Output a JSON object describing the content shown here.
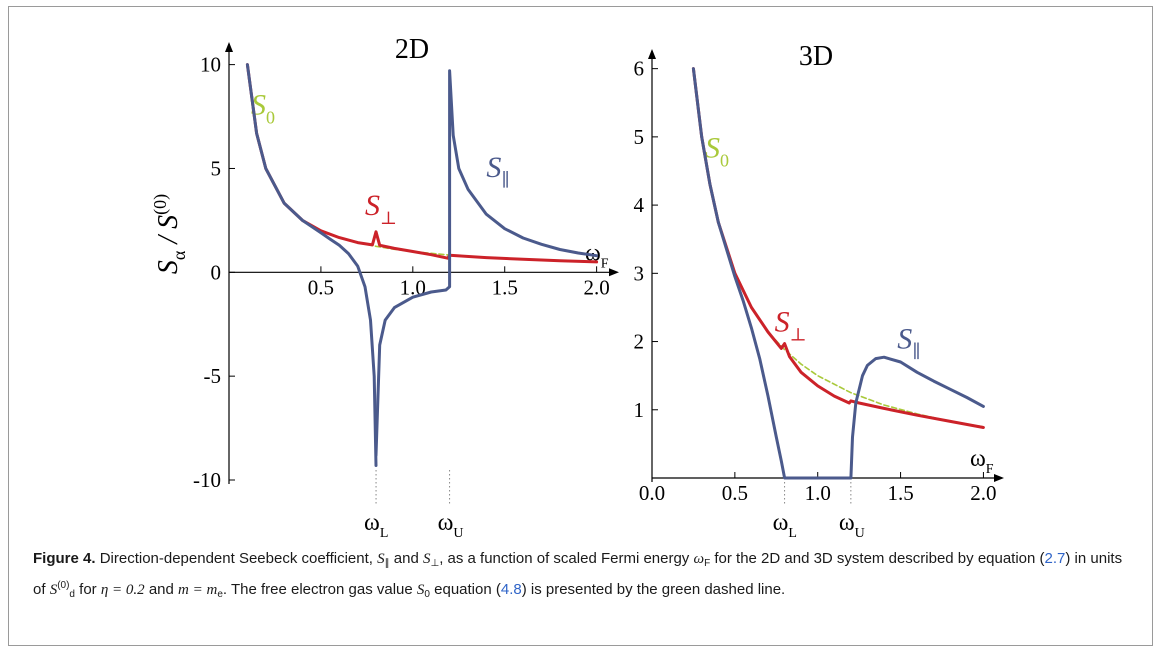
{
  "colors": {
    "S_perp": "#cc2229",
    "S_par": "#4b5a8c",
    "S0": "#a9c93a",
    "axis": "#000000",
    "marker": "#888888"
  },
  "chart_data": [
    {
      "type": "line",
      "title": "2D",
      "xlabel": "ω",
      "xlabel_sub": "F",
      "ylabel": "S",
      "ylabel_sub": "α",
      "ylabel_mid": " / S",
      "ylabel_sup": "(0)",
      "xlim": [
        0,
        2.1
      ],
      "ylim": [
        -10,
        10.8
      ],
      "x_ticks": [
        {
          "v": 0.5,
          "label": "0.5"
        },
        {
          "v": 1.0,
          "label": "1.0"
        },
        {
          "v": 1.5,
          "label": "1.5"
        },
        {
          "v": 2.0,
          "label": "2.0"
        }
      ],
      "y_ticks": [
        {
          "v": 10,
          "label": "10"
        },
        {
          "v": 5,
          "label": "5"
        },
        {
          "v": 0,
          "label": "0"
        },
        {
          "v": -5,
          "label": "-5"
        },
        {
          "v": -10,
          "label": "-10"
        }
      ],
      "markers": [
        {
          "x": 0.8,
          "label": "ω",
          "sub": "L"
        },
        {
          "x": 1.2,
          "label": "ω",
          "sub": "U"
        }
      ],
      "series": [
        {
          "key": "S0",
          "name": "S",
          "name_sub": "0",
          "color": "#a9c93a",
          "dash": true,
          "label_at": [
            0.12,
            7.6
          ],
          "points": [
            [
              0.1,
              10.0
            ],
            [
              0.15,
              6.7
            ],
            [
              0.2,
              5.0
            ],
            [
              0.3,
              3.33
            ],
            [
              0.4,
              2.5
            ],
            [
              0.5,
              2.0
            ],
            [
              0.6,
              1.67
            ],
            [
              0.7,
              1.43
            ],
            [
              0.8,
              1.25
            ],
            [
              0.9,
              1.11
            ],
            [
              1.0,
              1.0
            ],
            [
              1.2,
              0.83
            ],
            [
              1.4,
              0.71
            ],
            [
              1.6,
              0.625
            ],
            [
              1.8,
              0.556
            ],
            [
              2.0,
              0.5
            ]
          ]
        },
        {
          "key": "S_perp",
          "name": "S",
          "name_sub": "⊥",
          "color": "#cc2229",
          "dash": false,
          "label_at": [
            0.74,
            2.75
          ],
          "points": [
            [
              0.1,
              10.0
            ],
            [
              0.15,
              6.7
            ],
            [
              0.2,
              5.0
            ],
            [
              0.3,
              3.33
            ],
            [
              0.4,
              2.5
            ],
            [
              0.5,
              2.0
            ],
            [
              0.6,
              1.67
            ],
            [
              0.7,
              1.43
            ],
            [
              0.78,
              1.32
            ],
            [
              0.8,
              1.95
            ],
            [
              0.82,
              1.3
            ],
            [
              0.9,
              1.15
            ],
            [
              1.0,
              1.0
            ],
            [
              1.1,
              0.85
            ],
            [
              1.19,
              0.68
            ],
            [
              1.2,
              0.82
            ],
            [
              1.4,
              0.71
            ],
            [
              1.6,
              0.625
            ],
            [
              1.8,
              0.556
            ],
            [
              2.0,
              0.5
            ]
          ]
        },
        {
          "key": "S_par",
          "name": "S",
          "name_sub": "∥",
          "color": "#4b5a8c",
          "dash": false,
          "label_at": [
            1.4,
            4.6
          ],
          "segments": [
            [
              [
                0.1,
                10.0
              ],
              [
                0.15,
                6.7
              ],
              [
                0.2,
                5.0
              ],
              [
                0.3,
                3.33
              ],
              [
                0.4,
                2.5
              ],
              [
                0.5,
                1.9
              ],
              [
                0.55,
                1.6
              ],
              [
                0.6,
                1.3
              ],
              [
                0.65,
                0.9
              ],
              [
                0.7,
                0.3
              ],
              [
                0.74,
                -0.7
              ],
              [
                0.77,
                -2.3
              ],
              [
                0.79,
                -5.0
              ],
              [
                0.8,
                -9.3
              ]
            ],
            [
              [
                0.8,
                -8.8
              ],
              [
                0.82,
                -3.5
              ],
              [
                0.85,
                -2.3
              ],
              [
                0.9,
                -1.7
              ],
              [
                1.0,
                -1.2
              ],
              [
                1.1,
                -0.95
              ],
              [
                1.18,
                -0.85
              ],
              [
                1.2,
                -0.7
              ],
              [
                1.2,
                9.7
              ],
              [
                1.22,
                6.6
              ],
              [
                1.25,
                5.0
              ],
              [
                1.3,
                4.0
              ],
              [
                1.4,
                2.8
              ],
              [
                1.5,
                2.1
              ],
              [
                1.6,
                1.65
              ],
              [
                1.7,
                1.35
              ],
              [
                1.8,
                1.1
              ],
              [
                1.9,
                0.93
              ],
              [
                2.0,
                0.8
              ]
            ]
          ]
        }
      ]
    },
    {
      "type": "line",
      "title": "3D",
      "xlabel": "ω",
      "xlabel_sub": "F",
      "xlim": [
        0,
        2.1
      ],
      "ylim": [
        0,
        6.2
      ],
      "x_ticks": [
        {
          "v": 0.0,
          "label": "0.0"
        },
        {
          "v": 0.5,
          "label": "0.5"
        },
        {
          "v": 1.0,
          "label": "1.0"
        },
        {
          "v": 1.5,
          "label": "1.5"
        },
        {
          "v": 2.0,
          "label": "2.0"
        }
      ],
      "y_ticks": [
        {
          "v": 6,
          "label": "6"
        },
        {
          "v": 5,
          "label": "5"
        },
        {
          "v": 4,
          "label": "4"
        },
        {
          "v": 3,
          "label": "3"
        },
        {
          "v": 2,
          "label": "2"
        },
        {
          "v": 1,
          "label": "1"
        }
      ],
      "markers": [
        {
          "x": 0.8,
          "label": "ω",
          "sub": "L"
        },
        {
          "x": 1.2,
          "label": "ω",
          "sub": "U"
        }
      ],
      "series": [
        {
          "key": "S0",
          "name": "S",
          "name_sub": "0",
          "color": "#a9c93a",
          "dash": true,
          "label_at": [
            0.32,
            4.7
          ],
          "points": [
            [
              0.25,
              6.0
            ],
            [
              0.3,
              5.0
            ],
            [
              0.35,
              4.3
            ],
            [
              0.4,
              3.75
            ],
            [
              0.5,
              3.0
            ],
            [
              0.6,
              2.5
            ],
            [
              0.7,
              2.14
            ],
            [
              0.8,
              1.88
            ],
            [
              0.9,
              1.67
            ],
            [
              1.0,
              1.5
            ],
            [
              1.2,
              1.25
            ],
            [
              1.4,
              1.07
            ],
            [
              1.6,
              0.94
            ],
            [
              1.8,
              0.83
            ],
            [
              2.0,
              0.75
            ]
          ]
        },
        {
          "key": "S_perp",
          "name": "S",
          "name_sub": "⊥",
          "color": "#cc2229",
          "dash": false,
          "label_at": [
            0.74,
            2.15
          ],
          "points": [
            [
              0.25,
              6.0
            ],
            [
              0.3,
              5.0
            ],
            [
              0.35,
              4.3
            ],
            [
              0.4,
              3.75
            ],
            [
              0.5,
              3.0
            ],
            [
              0.6,
              2.5
            ],
            [
              0.7,
              2.14
            ],
            [
              0.78,
              1.9
            ],
            [
              0.8,
              1.97
            ],
            [
              0.83,
              1.78
            ],
            [
              0.9,
              1.55
            ],
            [
              1.0,
              1.35
            ],
            [
              1.1,
              1.2
            ],
            [
              1.19,
              1.1
            ],
            [
              1.2,
              1.13
            ],
            [
              1.25,
              1.1
            ],
            [
              1.4,
              1.02
            ],
            [
              1.6,
              0.92
            ],
            [
              1.8,
              0.83
            ],
            [
              2.0,
              0.74
            ]
          ]
        },
        {
          "key": "S_par",
          "name": "S",
          "name_sub": "∥",
          "color": "#4b5a8c",
          "dash": false,
          "label_at": [
            1.48,
            1.9
          ],
          "segments": [
            [
              [
                0.25,
                6.0
              ],
              [
                0.3,
                5.0
              ],
              [
                0.35,
                4.3
              ],
              [
                0.4,
                3.75
              ],
              [
                0.5,
                2.95
              ],
              [
                0.55,
                2.6
              ],
              [
                0.6,
                2.2
              ],
              [
                0.65,
                1.75
              ],
              [
                0.7,
                1.2
              ],
              [
                0.75,
                0.6
              ],
              [
                0.78,
                0.25
              ],
              [
                0.8,
                0.0
              ],
              [
                1.2,
                0.0
              ],
              [
                1.21,
                0.6
              ],
              [
                1.23,
                1.1
              ],
              [
                1.27,
                1.5
              ],
              [
                1.3,
                1.65
              ],
              [
                1.35,
                1.75
              ],
              [
                1.4,
                1.77
              ],
              [
                1.5,
                1.7
              ],
              [
                1.6,
                1.55
              ],
              [
                1.7,
                1.42
              ],
              [
                1.8,
                1.3
              ],
              [
                1.9,
                1.18
              ],
              [
                2.0,
                1.05
              ]
            ]
          ]
        }
      ]
    }
  ],
  "caption": {
    "label": "Figure 4.",
    "t1": "Direction-dependent Seebeck coefficient, ",
    "s_par": "S",
    "s_par_sub": "∥",
    "t2": " and ",
    "s_perp": "S",
    "s_perp_sub": "⊥",
    "t3": ", as a function of scaled Fermi energy ",
    "omega": "ω",
    "omega_sub": "F",
    "t4": " for the 2D and 3D system described by equation (",
    "ref1": "2.7",
    "t5": ") in units of ",
    "s_d": "S",
    "s_d_sub": "d",
    "s_d_sup": "(0)",
    "t6": " for ",
    "eta": "η = 0.2",
    "t7": " and ",
    "m": "m = m",
    "m_sub": "e",
    "t8": ". The free electron gas value ",
    "s0": "S",
    "s0_sub": "0",
    "t9": " equation (",
    "ref2": "4.8",
    "t10": ") is presented by the green dashed line."
  }
}
